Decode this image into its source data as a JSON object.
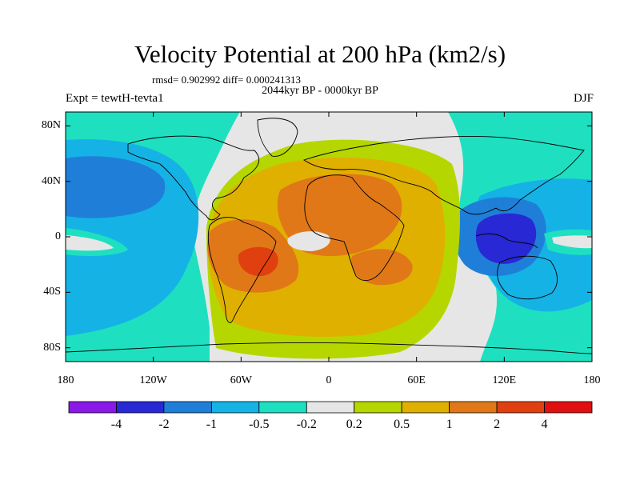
{
  "header": {
    "title": "Velocity Potential at 200 hPa (km2/s)",
    "stats": "rmsd= 0.902992 diff= 0.000241313",
    "period": "2044kyr BP - 0000kyr BP",
    "experiment": "Expt = tewtH-tevta1",
    "season": "DJF"
  },
  "axes": {
    "y_ticks": [
      "80N",
      "40N",
      "0",
      "40S",
      "80S"
    ],
    "x_ticks": [
      "180",
      "120W",
      "60W",
      "0",
      "60E",
      "120E",
      "180"
    ]
  },
  "colorbar": {
    "labels": [
      "-4",
      "-2",
      "-1",
      "-0.5",
      "-0.2",
      "0.2",
      "0.5",
      "1",
      "2",
      "4"
    ],
    "colors": [
      "#8a18e6",
      "#2828d4",
      "#1f7fd8",
      "#15b2e6",
      "#1ee0c0",
      "#e6e6e6",
      "#b6d600",
      "#e0b000",
      "#e07818",
      "#e04010",
      "#e01010"
    ]
  },
  "map_colors": {
    "background": "#e6e6e6",
    "neg_0_2": "#1ee0c0",
    "neg_0_5": "#15b2e6",
    "neg_1": "#1f7fd8",
    "neg_2": "#2828d4",
    "pos_0_2": "#b6d600",
    "pos_0_5": "#e0b000",
    "pos_1": "#e07818",
    "pos_2": "#e04010"
  }
}
